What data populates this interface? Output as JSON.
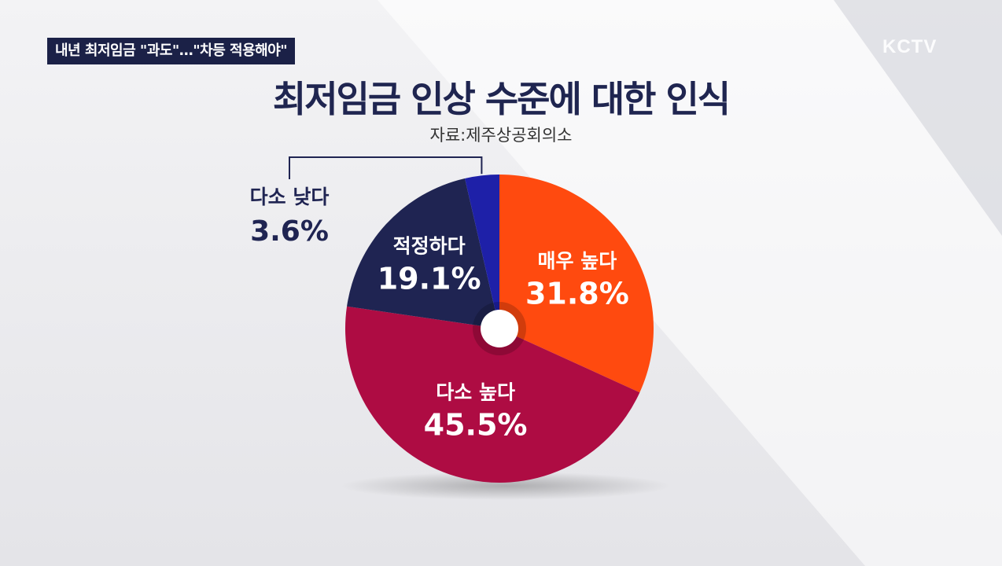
{
  "news_caption": "내년 최저임금 \"과도\"…\"차등 적용해야\"",
  "logo": "KCTV",
  "chart_data": {
    "type": "pie",
    "title": "최저임금 인상 수준에 대한 인식",
    "source": "자료:제주상공회의소",
    "slices": [
      {
        "label": "매우 높다",
        "value": 31.8,
        "value_label": "31.8%",
        "color": "#ff4a0f"
      },
      {
        "label": "다소 높다",
        "value": 45.5,
        "value_label": "45.5%",
        "color": "#ae0c43"
      },
      {
        "label": "적정하다",
        "value": 19.1,
        "value_label": "19.1%",
        "color": "#1f2452"
      },
      {
        "label": "다소 낮다",
        "value": 3.6,
        "value_label": "3.6%",
        "color": "#1e20a8"
      }
    ]
  }
}
